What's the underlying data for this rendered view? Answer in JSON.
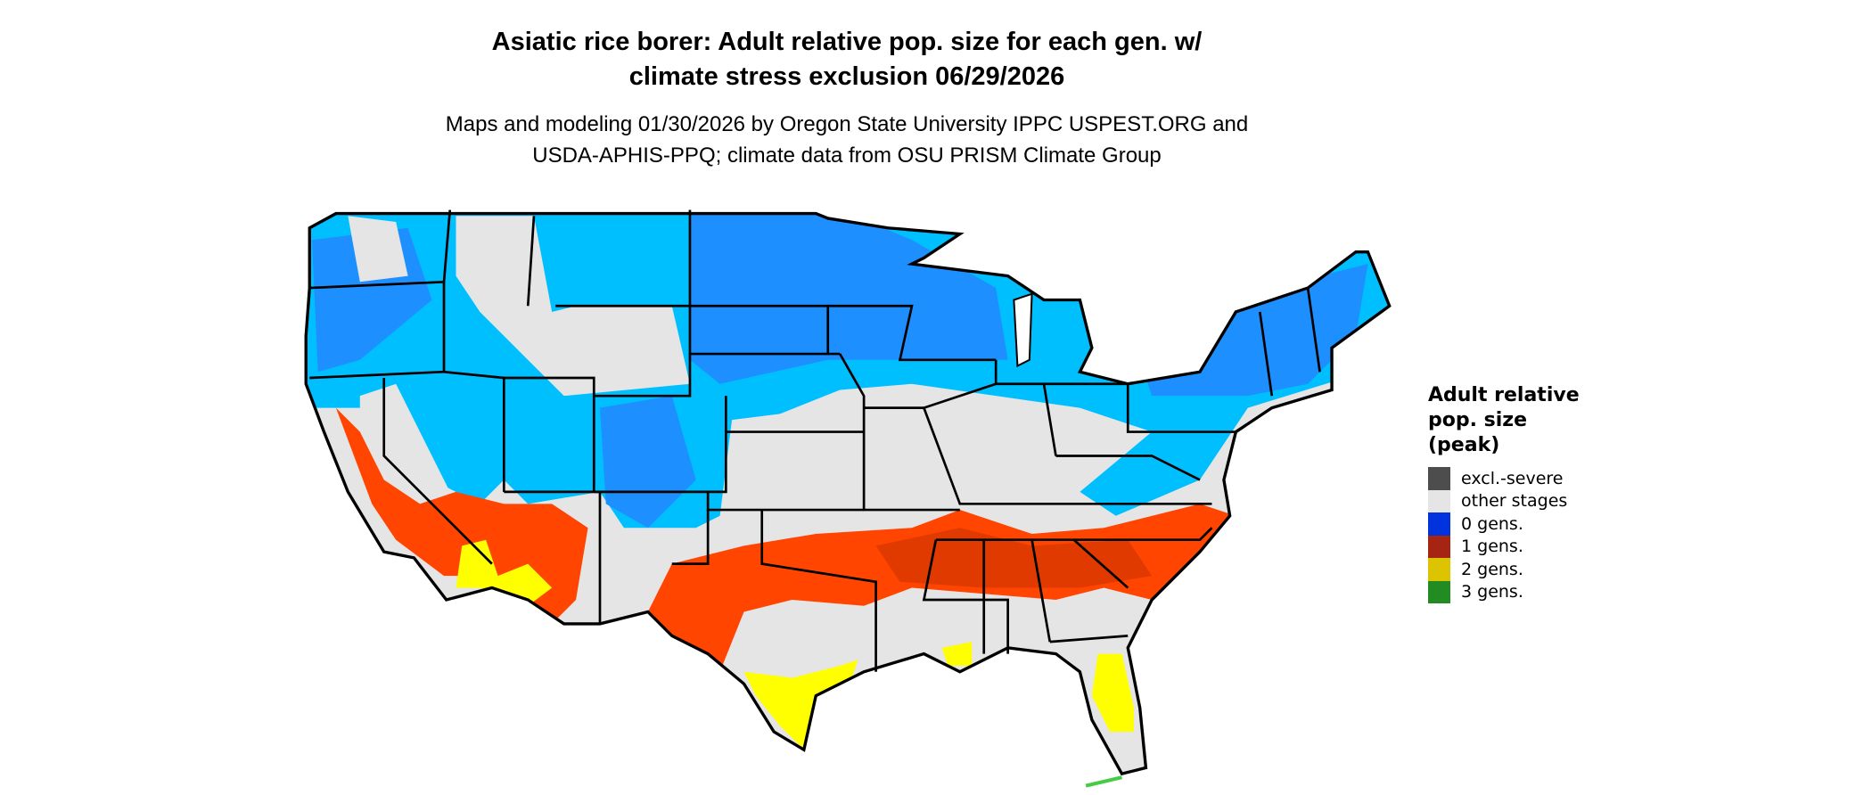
{
  "title": {
    "line1": "Asiatic rice borer: Adult relative pop. size for each gen. w/",
    "line2": "climate stress exclusion 06/29/2026"
  },
  "subtitle": {
    "line1": "Maps and modeling 01/30/2026 by Oregon State University IPPC USPEST.ORG and",
    "line2": "USDA-APHIS-PPQ; climate data from OSU PRISM Climate Group"
  },
  "legend": {
    "title_lines": [
      "Adult relative",
      "pop. size",
      "(peak)"
    ],
    "items": [
      {
        "label": "excl.-severe",
        "color": "#4d4d4d"
      },
      {
        "label": "other stages",
        "color": "#e5e5e5"
      },
      {
        "label": "0 gens.",
        "color": "#0033dd"
      },
      {
        "label": "1 gens.",
        "color": "#a62412"
      },
      {
        "label": "2 gens.",
        "color": "#dcc400"
      },
      {
        "label": "3 gens.",
        "color": "#228b22"
      }
    ]
  },
  "map_colors": {
    "background_gray": "#e5e5e5",
    "light_blue": "#00bfff",
    "mid_blue": "#1e8fff",
    "orange": "#ff4500",
    "dark_orange": "#e03a00",
    "yellow": "#ffff00"
  }
}
